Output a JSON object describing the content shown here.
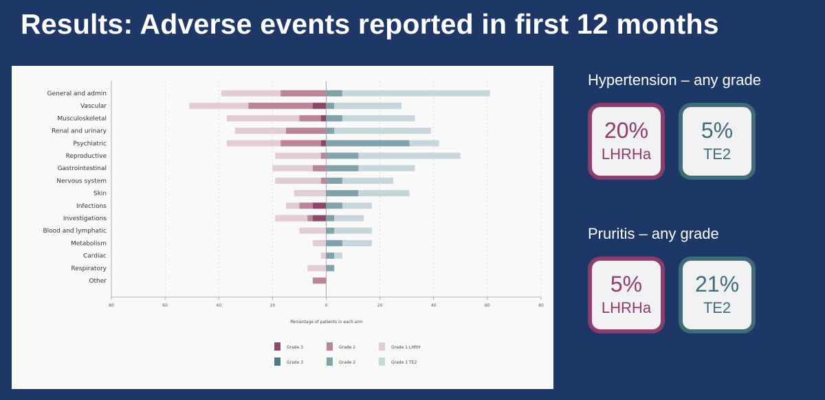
{
  "slide": {
    "title": "Results: Adverse events reported in first 12 months"
  },
  "chart_data": {
    "type": "bar",
    "orientation": "horizontal-diverging",
    "xlabel": "Percentage of patients in each arm",
    "xlim": [
      -80,
      80
    ],
    "xticks": [
      -80,
      -60,
      -40,
      -20,
      0,
      20,
      40,
      60,
      80
    ],
    "xtick_labels": [
      "80",
      "60",
      "40",
      "20",
      "0",
      "20",
      "40",
      "60",
      "80"
    ],
    "grid": true,
    "legend_position": "bottom",
    "categories": [
      "General and admin",
      "Vascular",
      "Musculoskeletal",
      "Renal and urinary",
      "Psychiatric",
      "Reproductive",
      "Gastrointestinal",
      "Nervous system",
      "Skin",
      "Infections",
      "Investigations",
      "Blood and lymphatic",
      "Metabolism",
      "Cardiac",
      "Respiratory",
      "Other"
    ],
    "series": [
      {
        "name": "Grade 3",
        "arm": "LHRH",
        "side": "left",
        "color": "#8e4669",
        "values": [
          0,
          5,
          2,
          0,
          2,
          0,
          0,
          0,
          0,
          5,
          5,
          0,
          0,
          0,
          0,
          0
        ]
      },
      {
        "name": "Grade 2",
        "arm": "LHRH",
        "side": "left",
        "color": "#bb8499",
        "values": [
          17,
          24,
          8,
          15,
          15,
          2,
          5,
          2,
          0,
          5,
          2,
          0,
          0,
          0,
          0,
          5
        ]
      },
      {
        "name": "Grade 1 LHRH",
        "arm": "LHRH",
        "side": "left",
        "color": "#e3ccd5",
        "values": [
          22,
          22,
          27,
          19,
          20,
          17,
          15,
          17,
          12,
          5,
          12,
          10,
          5,
          2,
          7,
          0
        ]
      },
      {
        "name": "Grade 3",
        "arm": "TE2",
        "side": "right",
        "color": "#4d7a87",
        "values": [
          0,
          0,
          0,
          0,
          0,
          0,
          0,
          0,
          0,
          0,
          0,
          0,
          0,
          0,
          0,
          0
        ]
      },
      {
        "name": "Grade 2",
        "arm": "TE2",
        "side": "right",
        "color": "#80a2ac",
        "values": [
          6,
          3,
          6,
          3,
          31,
          12,
          12,
          6,
          12,
          6,
          3,
          3,
          6,
          3,
          3,
          0
        ]
      },
      {
        "name": "Grade 1 TE2",
        "arm": "TE2",
        "side": "right",
        "color": "#c7d6db",
        "values": [
          55,
          25,
          27,
          36,
          11,
          38,
          21,
          19,
          19,
          11,
          11,
          14,
          11,
          3,
          0,
          0
        ]
      }
    ],
    "legend": [
      {
        "label": "Grade 3",
        "color": "#8e4669"
      },
      {
        "label": "Grade 2",
        "color": "#bb8499"
      },
      {
        "label": "Grade 1 LHRH",
        "color": "#e3ccd5"
      },
      {
        "label": "Grade 3",
        "color": "#4d7a87"
      },
      {
        "label": "Grade 2",
        "color": "#80a2ac"
      },
      {
        "label": "Grade 1  TE2",
        "color": "#c7d6db"
      }
    ]
  },
  "stats": {
    "hypertension": {
      "heading": "Hypertension – any grade",
      "lhrh": {
        "percent": "20%",
        "arm": "LHRHa"
      },
      "te2": {
        "percent": "5%",
        "arm": "TE2"
      }
    },
    "pruritis": {
      "heading": "Pruritis – any grade",
      "lhrh": {
        "percent": "5%",
        "arm": "LHRHa"
      },
      "te2": {
        "percent": "21%",
        "arm": "TE2"
      }
    }
  },
  "colors": {
    "background": "#1d3766",
    "lhrh_accent": "#8b3d6c",
    "te2_accent": "#3f6b76"
  }
}
